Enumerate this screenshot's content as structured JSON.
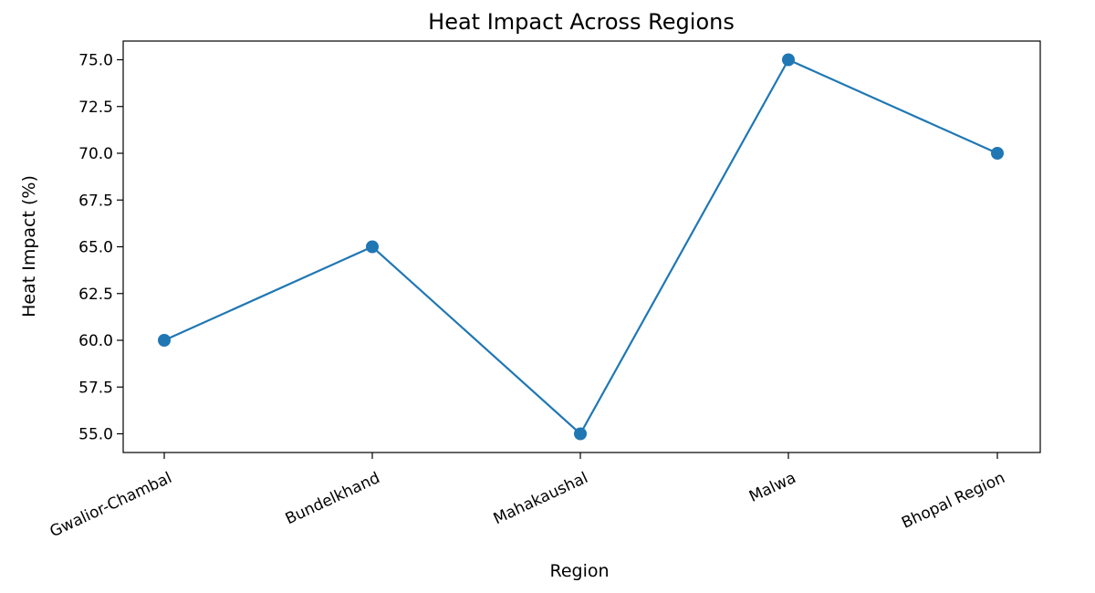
{
  "chart_data": {
    "type": "line",
    "title": "Heat Impact Across Regions",
    "xlabel": "Region",
    "ylabel": "Heat Impact (%)",
    "categories": [
      "Gwalior-Chambal",
      "Bundelkhand",
      "Mahakaushal",
      "Malwa",
      "Bhopal Region"
    ],
    "series": [
      {
        "values": [
          60,
          65,
          55,
          75,
          70
        ],
        "color": "#1f77b4"
      }
    ],
    "ylim": [
      54,
      76
    ],
    "yticks": [
      55.0,
      57.5,
      60.0,
      62.5,
      65.0,
      67.5,
      70.0,
      72.5,
      75.0
    ],
    "ytick_labels": [
      "55.0",
      "57.5",
      "60.0",
      "62.5",
      "65.0",
      "67.5",
      "70.0",
      "72.5",
      "75.0"
    ],
    "grid": false,
    "legend": "none"
  }
}
